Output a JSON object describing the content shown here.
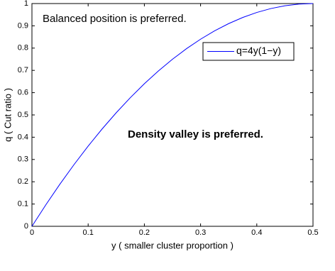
{
  "chart_data": {
    "type": "line",
    "xlabel": "y ( smaller cluster proportion )",
    "ylabel": "q ( Cut ratio )",
    "annotations": [
      "Balanced position is preferred.",
      "Density valley is preferred."
    ],
    "x": [
      0,
      0.025,
      0.05,
      0.075,
      0.1,
      0.125,
      0.15,
      0.175,
      0.2,
      0.225,
      0.25,
      0.275,
      0.3,
      0.325,
      0.35,
      0.375,
      0.4,
      0.425,
      0.45,
      0.475,
      0.5
    ],
    "series": [
      {
        "name": "q=4y(1−y)",
        "color": "#0000ff",
        "values": [
          0,
          0.0975,
          0.19,
          0.2775,
          0.36,
          0.4375,
          0.51,
          0.5775,
          0.64,
          0.6975,
          0.75,
          0.7975,
          0.84,
          0.8775,
          0.91,
          0.9375,
          0.96,
          0.9775,
          0.99,
          0.9975,
          1
        ]
      }
    ],
    "xlim": [
      0,
      0.5
    ],
    "xticks": [
      0,
      0.1,
      0.2,
      0.3,
      0.4,
      0.5
    ],
    "ylim": [
      0,
      1
    ],
    "yticks": [
      0,
      0.1,
      0.2,
      0.3,
      0.4,
      0.5,
      0.6,
      0.7,
      0.8,
      0.9,
      1
    ],
    "legend": "upper right",
    "grid": false
  }
}
